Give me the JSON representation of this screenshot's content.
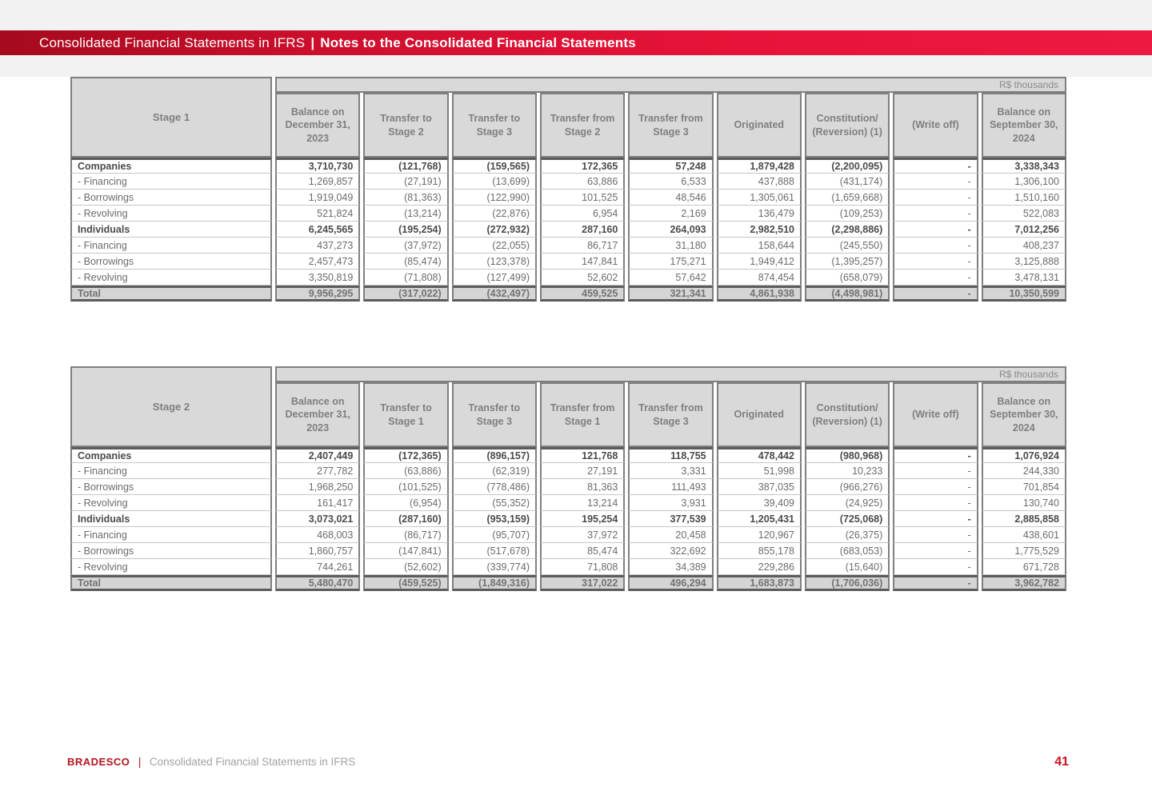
{
  "banner": {
    "left": "Consolidated Financial Statements in IFRS",
    "separator": "|",
    "right": "Notes to the Consolidated Financial Statements"
  },
  "tables": [
    {
      "stage_label": "Stage 1",
      "currency_note": "R$ thousands",
      "columns": [
        "Balance on December 31, 2023",
        "Transfer to Stage 2",
        "Transfer to Stage 3",
        "Transfer from Stage 2",
        "Transfer from Stage 3",
        "Originated",
        "Constitution/ (Reversion) (1)",
        "(Write off)",
        "Balance on September 30, 2024"
      ],
      "rows": [
        {
          "label": "Companies",
          "bold": true,
          "values": [
            "3,710,730",
            "(121,768)",
            "(159,565)",
            "172,365",
            "57,248",
            "1,879,428",
            "(2,200,095)",
            "-",
            "3,338,343"
          ]
        },
        {
          "label": "- Financing",
          "bold": false,
          "values": [
            "1,269,857",
            "(27,191)",
            "(13,699)",
            "63,886",
            "6,533",
            "437,888",
            "(431,174)",
            "-",
            "1,306,100"
          ]
        },
        {
          "label": "- Borrowings",
          "bold": false,
          "values": [
            "1,919,049",
            "(81,363)",
            "(122,990)",
            "101,525",
            "48,546",
            "1,305,061",
            "(1,659,668)",
            "-",
            "1,510,160"
          ]
        },
        {
          "label": "- Revolving",
          "bold": false,
          "values": [
            "521,824",
            "(13,214)",
            "(22,876)",
            "6,954",
            "2,169",
            "136,479",
            "(109,253)",
            "-",
            "522,083"
          ]
        },
        {
          "label": "Individuals",
          "bold": true,
          "values": [
            "6,245,565",
            "(195,254)",
            "(272,932)",
            "287,160",
            "264,093",
            "2,982,510",
            "(2,298,886)",
            "-",
            "7,012,256"
          ]
        },
        {
          "label": "- Financing",
          "bold": false,
          "values": [
            "437,273",
            "(37,972)",
            "(22,055)",
            "86,717",
            "31,180",
            "158,644",
            "(245,550)",
            "-",
            "408,237"
          ]
        },
        {
          "label": "- Borrowings",
          "bold": false,
          "values": [
            "2,457,473",
            "(85,474)",
            "(123,378)",
            "147,841",
            "175,271",
            "1,949,412",
            "(1,395,257)",
            "-",
            "3,125,888"
          ]
        },
        {
          "label": "- Revolving",
          "bold": false,
          "values": [
            "3,350,819",
            "(71,808)",
            "(127,499)",
            "52,602",
            "57,642",
            "874,454",
            "(658,079)",
            "-",
            "3,478,131"
          ]
        }
      ],
      "total": {
        "label": "Total",
        "values": [
          "9,956,295",
          "(317,022)",
          "(432,497)",
          "459,525",
          "321,341",
          "4,861,938",
          "(4,498,981)",
          "-",
          "10,350,599"
        ]
      }
    },
    {
      "stage_label": "Stage 2",
      "currency_note": "R$ thousands",
      "columns": [
        "Balance on December 31, 2023",
        "Transfer to Stage 1",
        "Transfer to Stage 3",
        "Transfer from Stage 1",
        "Transfer from Stage 3",
        "Originated",
        "Constitution/ (Reversion) (1)",
        "(Write off)",
        "Balance on September 30, 2024"
      ],
      "rows": [
        {
          "label": "Companies",
          "bold": true,
          "values": [
            "2,407,449",
            "(172,365)",
            "(896,157)",
            "121,768",
            "118,755",
            "478,442",
            "(980,968)",
            "-",
            "1,076,924"
          ]
        },
        {
          "label": "- Financing",
          "bold": false,
          "values": [
            "277,782",
            "(63,886)",
            "(62,319)",
            "27,191",
            "3,331",
            "51,998",
            "10,233",
            "-",
            "244,330"
          ]
        },
        {
          "label": "- Borrowings",
          "bold": false,
          "values": [
            "1,968,250",
            "(101,525)",
            "(778,486)",
            "81,363",
            "111,493",
            "387,035",
            "(966,276)",
            "-",
            "701,854"
          ]
        },
        {
          "label": "- Revolving",
          "bold": false,
          "values": [
            "161,417",
            "(6,954)",
            "(55,352)",
            "13,214",
            "3,931",
            "39,409",
            "(24,925)",
            "-",
            "130,740"
          ]
        },
        {
          "label": "Individuals",
          "bold": true,
          "values": [
            "3,073,021",
            "(287,160)",
            "(953,159)",
            "195,254",
            "377,539",
            "1,205,431",
            "(725,068)",
            "-",
            "2,885,858"
          ]
        },
        {
          "label": "- Financing",
          "bold": false,
          "values": [
            "468,003",
            "(86,717)",
            "(95,707)",
            "37,972",
            "20,458",
            "120,967",
            "(26,375)",
            "-",
            "438,601"
          ]
        },
        {
          "label": "- Borrowings",
          "bold": false,
          "values": [
            "1,860,757",
            "(147,841)",
            "(517,678)",
            "85,474",
            "322,692",
            "855,178",
            "(683,053)",
            "-",
            "1,775,529"
          ]
        },
        {
          "label": "- Revolving",
          "bold": false,
          "values": [
            "744,261",
            "(52,602)",
            "(339,774)",
            "71,808",
            "34,389",
            "229,286",
            "(15,640)",
            "-",
            "671,728"
          ]
        }
      ],
      "total": {
        "label": "Total",
        "values": [
          "5,480,470",
          "(459,525)",
          "(1,849,316)",
          "317,022",
          "496,294",
          "1,683,873",
          "(1,706,036)",
          "-",
          "3,962,782"
        ]
      }
    }
  ],
  "footer": {
    "brand": "BRADESCO",
    "separator": "|",
    "text": "Consolidated Financial Statements in IFRS",
    "page_number": "41"
  }
}
